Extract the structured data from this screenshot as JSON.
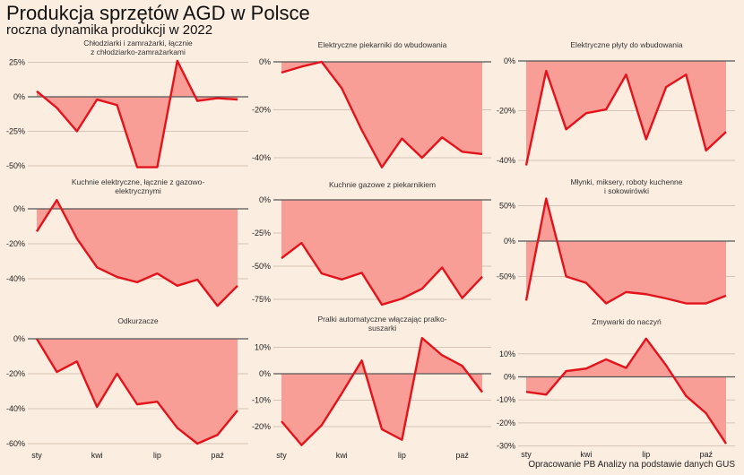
{
  "header": {
    "title": "Produkcja sprzętów AGD w Polsce",
    "subtitle": "roczna dynamika produkcji w 2022"
  },
  "source": "Opracowanie PB Analizy na podstawie danych GUS",
  "colors": {
    "line": "#e3131b",
    "fill": "#f99d97",
    "background": "#fbede0",
    "zero_line": "#555555",
    "grid": "#d6c3b5"
  },
  "chart_data": {
    "type": "area",
    "title": "Produkcja sprzętów AGD w Polsce",
    "subtitle": "roczna dynamika produkcji w 2022",
    "x": [
      "sty",
      "lut",
      "mar",
      "kwi",
      "maj",
      "cze",
      "lip",
      "sie",
      "wrz",
      "paź",
      "lis"
    ],
    "x_tick_labels": [
      "sty",
      "kwi",
      "lip",
      "paź"
    ],
    "unit": "%",
    "grid": true,
    "panels": [
      {
        "title": [
          "Chłodziarki i zamrażarki, łącznie",
          "z chłodziarko-zamrażarkami"
        ],
        "ylim": [
          -52,
          28
        ],
        "yticks": [
          25,
          0,
          -25,
          -50
        ],
        "values": [
          4,
          -8,
          -25,
          -2,
          -6,
          -51,
          -51,
          26,
          -3,
          -1,
          -2
        ]
      },
      {
        "title": [
          "Elektryczne piekarniki do wbudowania"
        ],
        "ylim": [
          -46,
          2
        ],
        "yticks": [
          0,
          -20,
          -40
        ],
        "values": [
          -4.5,
          -2,
          0,
          -11,
          -28.5,
          -44,
          -32,
          -40,
          -31.5,
          -37.5,
          -38.5
        ]
      },
      {
        "title": [
          "Elektryczne płyty do wbudowania"
        ],
        "ylim": [
          -43,
          1
        ],
        "yticks": [
          0,
          -20,
          -40
        ],
        "values": [
          -42,
          -4,
          -27.5,
          -21,
          -19.5,
          -5.5,
          -31.5,
          -10.5,
          -5.5,
          -36,
          -28.5
        ]
      },
      {
        "title": [
          "Kuchnie elektryczne, łącznie z gazowo-",
          "elektrycznymi"
        ],
        "ylim": [
          -57,
          6
        ],
        "yticks": [
          0,
          -20,
          -40
        ],
        "values": [
          -13,
          5,
          -17,
          -33.5,
          -39,
          -42,
          -37,
          -44,
          -40.5,
          -55.5,
          -44
        ]
      },
      {
        "title": [
          "Kuchnie gazowe z piekarnikiem"
        ],
        "ylim": [
          -80,
          2
        ],
        "yticks": [
          0,
          -25,
          -50,
          -75
        ],
        "values": [
          -44,
          -32.5,
          -55.5,
          -60,
          -55,
          -79,
          -74.5,
          -67,
          -51,
          -74,
          -58
        ]
      },
      {
        "title": [
          "Młynki, miksery, roboty kuchenne",
          "i sokowirówki"
        ],
        "ylim": [
          -90,
          62
        ],
        "yticks": [
          50,
          0,
          -50
        ],
        "values": [
          -84,
          60,
          -50,
          -59,
          -88,
          -72,
          -75,
          -81,
          -88,
          -88,
          -77
        ]
      },
      {
        "title": [
          "Odkurzacze"
        ],
        "ylim": [
          -61,
          1
        ],
        "yticks": [
          0,
          -20,
          -40,
          -60
        ],
        "values": [
          0,
          -19,
          -13,
          -39,
          -20,
          -37.5,
          -36,
          -51,
          -60,
          -55,
          -41
        ]
      },
      {
        "title": [
          "Pralki automatyczne włączając pralko-",
          "suszarki"
        ],
        "ylim": [
          -28,
          14
        ],
        "yticks": [
          10,
          0,
          -10,
          -20
        ],
        "values": [
          -18,
          -27,
          -19.5,
          -7.5,
          5,
          -21,
          -25,
          13.5,
          7,
          3,
          -7
        ]
      },
      {
        "title": [
          "Zmywarki do naczyń"
        ],
        "ylim": [
          -30,
          17
        ],
        "yticks": [
          10,
          0,
          -10,
          -20,
          -30
        ],
        "values": [
          -6.5,
          -7.7,
          2.5,
          3.6,
          7.6,
          3.9,
          16.6,
          5,
          -8.3,
          -15.8,
          -29
        ]
      }
    ]
  }
}
